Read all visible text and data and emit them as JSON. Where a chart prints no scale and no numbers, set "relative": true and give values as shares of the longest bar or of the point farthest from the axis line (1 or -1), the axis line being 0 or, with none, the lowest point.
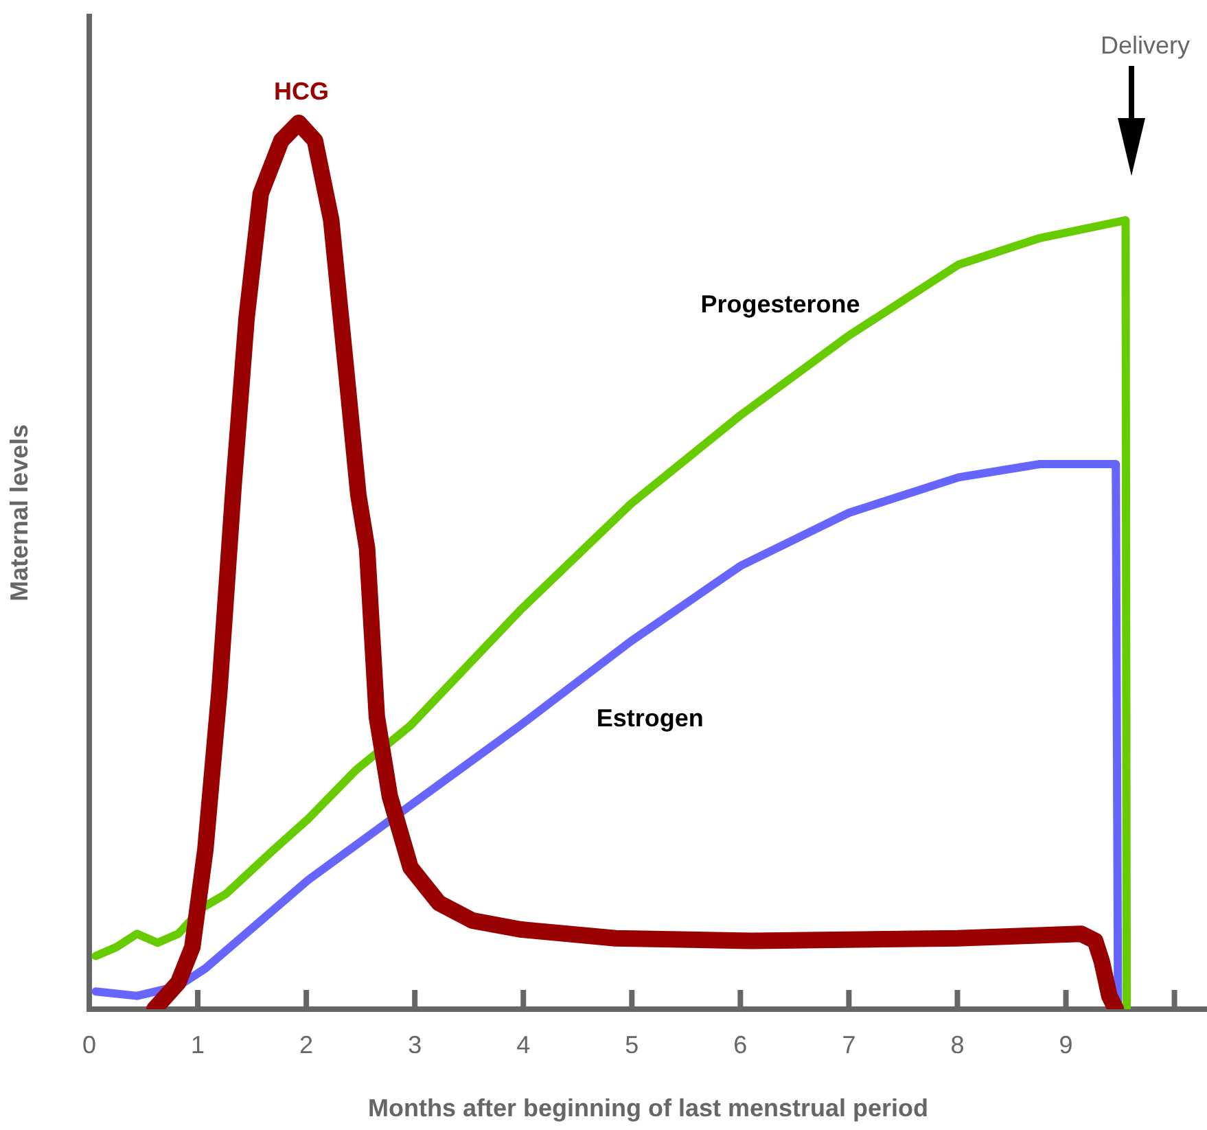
{
  "chart_data": {
    "type": "line",
    "relative": true,
    "xlabel": "Months after beginning of last menstrual period",
    "ylabel": "Maternal levels",
    "xlim": [
      0,
      10.3
    ],
    "xticks": [
      0,
      1,
      2,
      3,
      4,
      5,
      6,
      7,
      8,
      9,
      {
        "value": 10,
        "label": null
      }
    ],
    "annotations": [
      "Delivery"
    ],
    "marker": "none",
    "line_style": "solid",
    "series": [
      {
        "name": "HCG",
        "color": "#990000",
        "x": [
          0.6,
          0.82,
          0.95,
          1.07,
          1.2,
          1.33,
          1.45,
          1.58,
          1.77,
          1.93,
          2.08,
          2.23,
          2.36,
          2.48,
          2.56,
          2.65,
          2.77,
          2.96,
          3.22,
          3.53,
          3.97,
          4.85,
          6.1,
          8.0,
          9.14,
          9.27,
          9.33,
          9.4,
          9.46
        ],
        "values": [
          0,
          0.03,
          0.07,
          0.18,
          0.36,
          0.59,
          0.78,
          0.92,
          0.98,
          1.0,
          0.98,
          0.89,
          0.73,
          0.58,
          0.52,
          0.33,
          0.24,
          0.16,
          0.12,
          0.1,
          0.09,
          0.08,
          0.077,
          0.08,
          0.085,
          0.077,
          0.054,
          0.015,
          0
        ]
      },
      {
        "name": "Progesterone",
        "color": "#66cc00",
        "x": [
          0.06,
          0.25,
          0.44,
          0.63,
          0.82,
          1.05,
          1.26,
          1.7,
          2.02,
          2.46,
          2.96,
          3.97,
          4.99,
          6.0,
          7.0,
          8.01,
          8.76,
          9.55,
          9.56
        ],
        "values": [
          0.06,
          0.07,
          0.085,
          0.075,
          0.085,
          0.115,
          0.13,
          0.18,
          0.215,
          0.27,
          0.32,
          0.45,
          0.57,
          0.67,
          0.76,
          0.84,
          0.87,
          0.89,
          0
        ]
      },
      {
        "name": "Estrogen",
        "color": "#6666ff",
        "x": [
          0.06,
          0.44,
          0.82,
          1.07,
          2.02,
          2.96,
          3.97,
          4.99,
          6.0,
          7.0,
          8.01,
          8.76,
          9.46,
          9.48
        ],
        "values": [
          0.02,
          0.015,
          0.026,
          0.046,
          0.146,
          0.23,
          0.32,
          0.415,
          0.5,
          0.56,
          0.6,
          0.615,
          0.615,
          0
        ]
      }
    ]
  }
}
